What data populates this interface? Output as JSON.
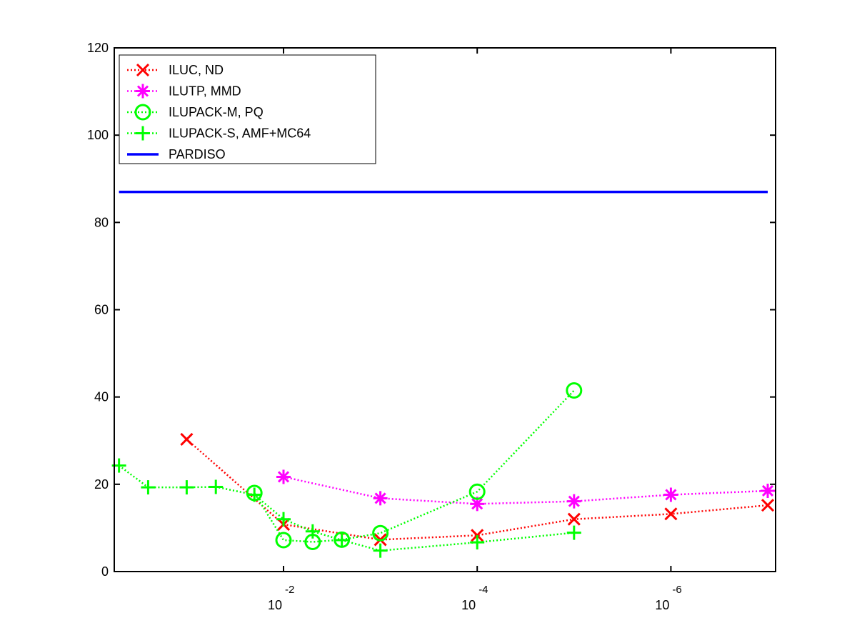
{
  "chart_data": {
    "type": "line",
    "title": "",
    "xlabel": "",
    "ylabel": "",
    "x_scale": "log",
    "x_reversed": true,
    "xlim": [
      1e-07,
      0.5
    ],
    "ylim": [
      0,
      120
    ],
    "y_ticks": [
      "0",
      "20",
      "40",
      "60",
      "80",
      "100",
      "120"
    ],
    "x_ticks": [
      {
        "value": 0.01,
        "base": "10",
        "exponent": "-2"
      },
      {
        "value": 0.0001,
        "base": "10",
        "exponent": "-4"
      },
      {
        "value": 1e-06,
        "base": "10",
        "exponent": "-6"
      }
    ],
    "grid": false,
    "legend_position": "top-left",
    "series": [
      {
        "name": "ILUC,  ND",
        "color": "#ff0000",
        "marker": "x",
        "line_style": "dotted",
        "points": [
          [
            0.1,
            30.3
          ],
          [
            0.01,
            10.8
          ],
          [
            0.001,
            7.3
          ],
          [
            0.0001,
            8.3
          ],
          [
            1e-05,
            12.0
          ],
          [
            1e-06,
            13.2
          ],
          [
            1e-07,
            15.2
          ]
        ]
      },
      {
        "name": "ILUTP, MMD",
        "color": "#ff00ff",
        "marker": "asterisk",
        "line_style": "dotted",
        "points": [
          [
            0.01,
            21.7
          ],
          [
            0.001,
            16.8
          ],
          [
            0.0001,
            15.5
          ],
          [
            1e-05,
            16.1
          ],
          [
            1e-06,
            17.6
          ],
          [
            1e-07,
            18.5
          ]
        ]
      },
      {
        "name": "ILUPACK-M, PQ",
        "color": "#00ff00",
        "marker": "circle",
        "line_style": "dotted",
        "points": [
          [
            0.02,
            18.0
          ],
          [
            0.01,
            7.2
          ],
          [
            0.005,
            6.8
          ],
          [
            0.0025,
            7.3
          ],
          [
            0.001,
            8.8
          ],
          [
            0.0001,
            18.3
          ],
          [
            1e-05,
            41.5
          ]
        ]
      },
      {
        "name": "ILUPACK-S, AMF+MC64",
        "color": "#00ff00",
        "marker": "plus",
        "line_style": "dotted",
        "points": [
          [
            0.5,
            24.3
          ],
          [
            0.25,
            19.3
          ],
          [
            0.1,
            19.3
          ],
          [
            0.05,
            19.4
          ],
          [
            0.02,
            17.6
          ],
          [
            0.01,
            12.0
          ],
          [
            0.005,
            9.2
          ],
          [
            0.0025,
            7.2
          ],
          [
            0.001,
            4.8
          ],
          [
            0.0001,
            6.7
          ],
          [
            1e-05,
            8.9
          ]
        ]
      },
      {
        "name": "PARDISO",
        "color": "#0000ff",
        "marker": "none",
        "line_style": "solid",
        "points": [
          [
            0.5,
            87.0
          ],
          [
            1e-07,
            87.0
          ]
        ]
      }
    ]
  }
}
